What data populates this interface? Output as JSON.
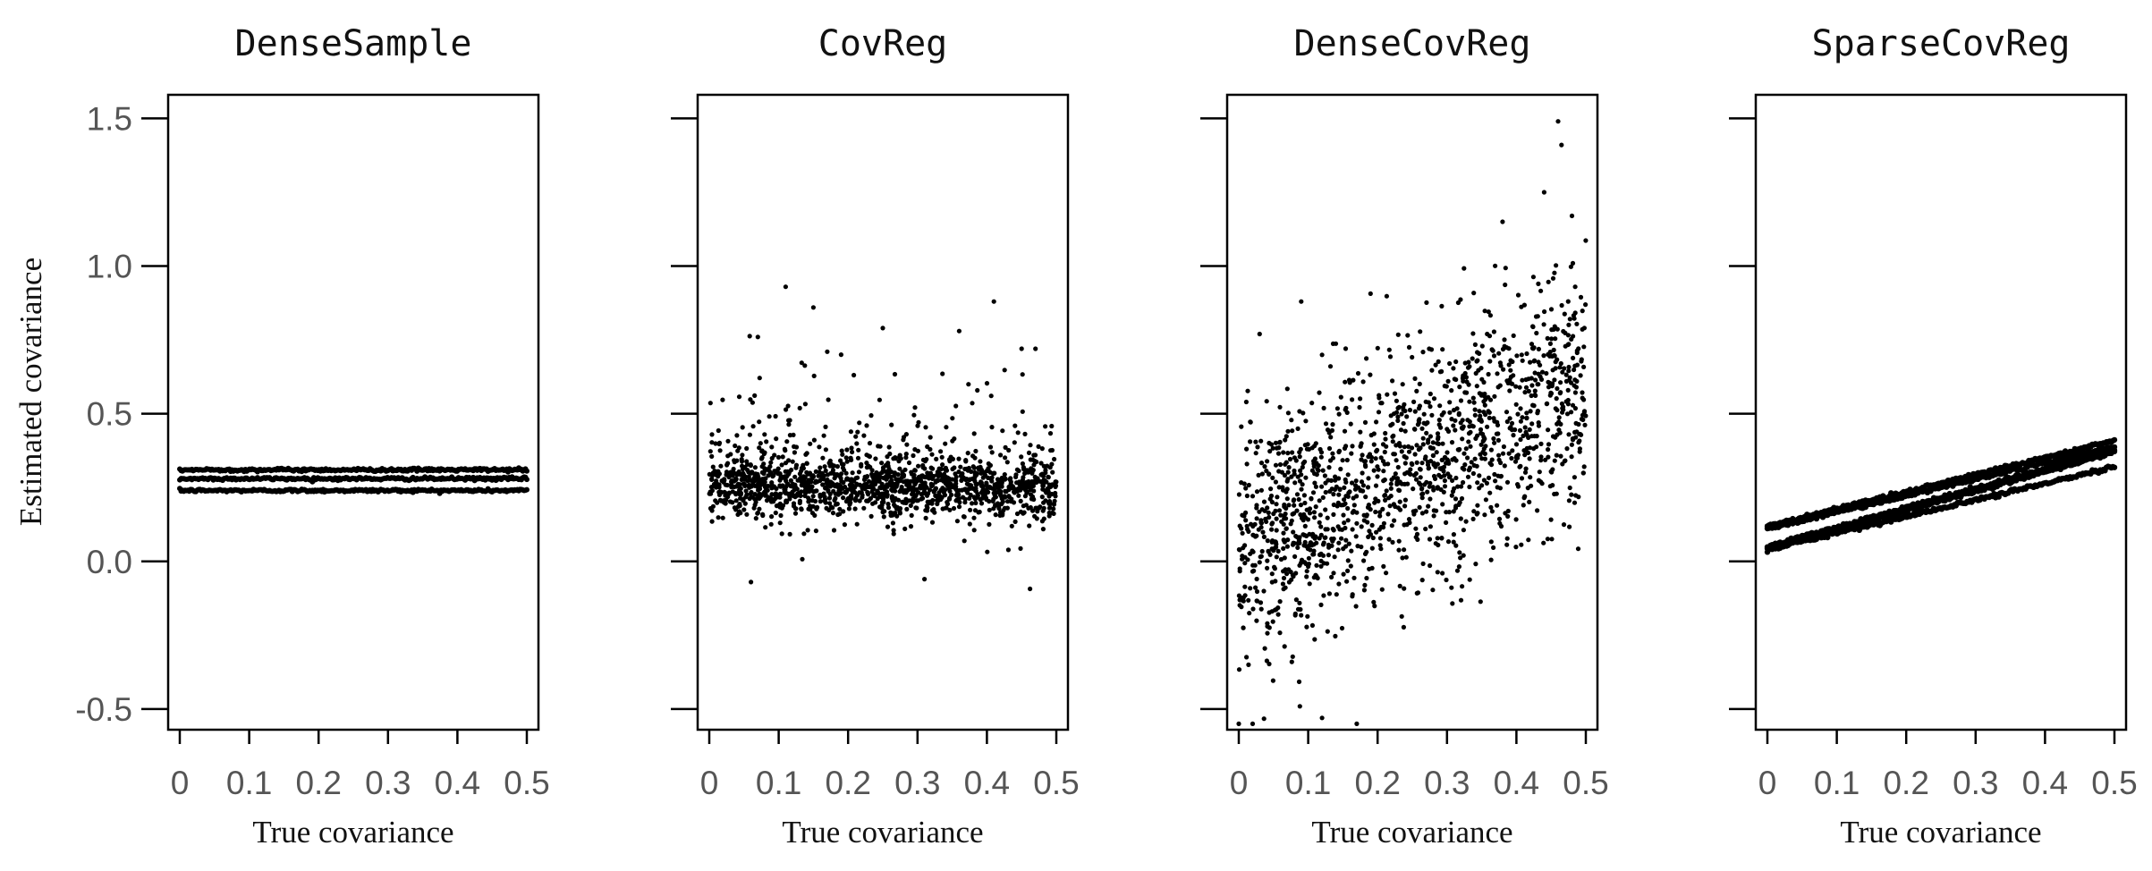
{
  "chart_data": {
    "type": "scatter",
    "ylabel": "Estimated covariance",
    "xlabel": "True covariance",
    "xlim": [
      0,
      0.5
    ],
    "ylim": [
      -0.57,
      1.58
    ],
    "xticks": [
      "0",
      "0.1",
      "0.2",
      "0.3",
      "0.4",
      "0.5"
    ],
    "yticks": [
      "-0.5",
      "0.0",
      "0.5",
      "1.0",
      "1.5"
    ],
    "xtick_values": [
      0,
      0.1,
      0.2,
      0.3,
      0.4,
      0.5
    ],
    "ytick_values": [
      -0.5,
      0.0,
      0.5,
      1.0,
      1.5
    ],
    "marker_color": "#000000",
    "panels": [
      {
        "title": "DenseSample",
        "pattern": "horizontal_bands",
        "x_range": [
          0,
          0.5
        ],
        "bands_y": [
          0.24,
          0.28,
          0.31
        ],
        "points_per_band": 260
      },
      {
        "title": "CovReg",
        "pattern": "flat_cloud",
        "x_range": [
          0,
          0.5
        ],
        "center_y": 0.25,
        "n_points": 1500,
        "y_range_observed": [
          -0.07,
          0.93
        ],
        "outliers": [
          [
            0.06,
            -0.07
          ],
          [
            0.11,
            0.93
          ],
          [
            0.15,
            0.86
          ],
          [
            0.31,
            -0.06
          ],
          [
            0.41,
            0.88
          ],
          [
            0.25,
            0.79
          ],
          [
            0.36,
            0.78
          ],
          [
            0.07,
            0.76
          ],
          [
            0.45,
            0.72
          ],
          [
            0.47,
            0.72
          ],
          [
            0.17,
            0.71
          ],
          [
            0.19,
            0.7
          ]
        ]
      },
      {
        "title": "DenseCovReg",
        "pattern": "increasing_cloud",
        "x_range": [
          0,
          0.5
        ],
        "intercept": 0.05,
        "slope": 1.1,
        "n_points": 1500,
        "y_range_observed": [
          -0.57,
          1.49
        ],
        "outliers": [
          [
            0.46,
            1.49
          ],
          [
            0.465,
            1.41
          ],
          [
            0.44,
            1.25
          ],
          [
            0.09,
            0.88
          ],
          [
            0.03,
            0.77
          ],
          [
            0.12,
            -0.53
          ],
          [
            0.17,
            -0.55
          ],
          [
            0.0,
            -0.55
          ],
          [
            0.02,
            -0.55
          ],
          [
            0.07,
            -0.57
          ],
          [
            0.48,
            1.17
          ],
          [
            0.38,
            1.15
          ]
        ]
      },
      {
        "title": "SparseCovReg",
        "pattern": "lines",
        "x_range": [
          0,
          0.5
        ],
        "lines": [
          [
            0.12,
            0.41
          ],
          [
            0.11,
            0.39
          ],
          [
            0.05,
            0.38
          ],
          [
            0.04,
            0.37
          ],
          [
            0.04,
            0.32
          ]
        ],
        "points_per_line": 220
      }
    ]
  }
}
